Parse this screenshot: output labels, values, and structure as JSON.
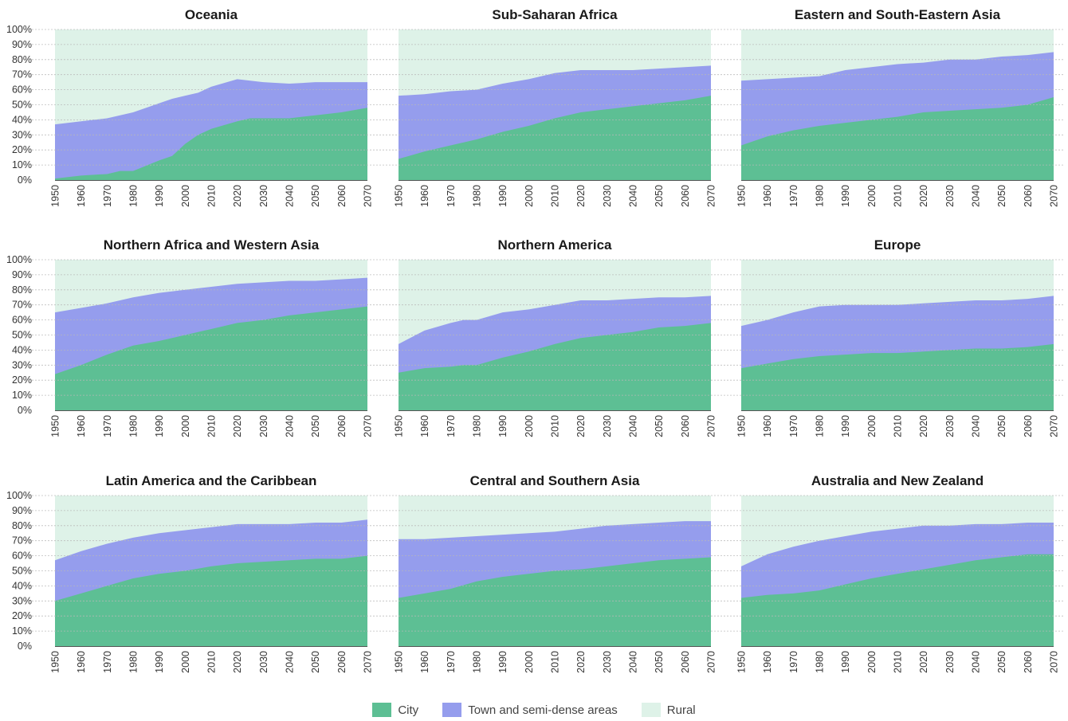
{
  "colors": {
    "city": "#5dbf94",
    "town": "#959ded",
    "rural": "#def2e8",
    "grid": "#b8b8b8"
  },
  "legend": [
    {
      "key": "city",
      "label": "City"
    },
    {
      "key": "town",
      "label": "Town and semi-dense areas"
    },
    {
      "key": "rural",
      "label": "Rural"
    }
  ],
  "chart_data": [
    {
      "type": "area",
      "title": "Oceania",
      "x": [
        1950,
        1960,
        1970,
        1975,
        1980,
        1990,
        1995,
        2000,
        2005,
        2010,
        2020,
        2025,
        2030,
        2040,
        2050,
        2060,
        2070
      ],
      "series": [
        {
          "name": "City",
          "values": [
            1,
            3,
            4,
            6,
            6,
            13,
            16,
            24,
            30,
            34,
            39,
            41,
            41,
            41,
            43,
            45,
            48
          ]
        },
        {
          "name": "Town and semi-dense areas",
          "values": [
            37,
            39,
            41,
            43,
            45,
            51,
            54,
            56,
            58,
            62,
            67,
            66,
            65,
            64,
            65,
            65,
            65
          ]
        },
        {
          "name": "Rural",
          "values": [
            100,
            100,
            100,
            100,
            100,
            100,
            100,
            100,
            100,
            100,
            100,
            100,
            100,
            100,
            100,
            100,
            100
          ]
        }
      ],
      "ylim": [
        0,
        100
      ]
    },
    {
      "type": "area",
      "title": "Sub-Saharan Africa",
      "x": [
        1950,
        1960,
        1970,
        1980,
        1990,
        2000,
        2010,
        2020,
        2030,
        2040,
        2050,
        2060,
        2070
      ],
      "series": [
        {
          "name": "City",
          "values": [
            14,
            19,
            23,
            27,
            32,
            36,
            41,
            45,
            47,
            49,
            51,
            53,
            56
          ]
        },
        {
          "name": "Town and semi-dense areas",
          "values": [
            56,
            57,
            59,
            60,
            64,
            67,
            71,
            73,
            73,
            73,
            74,
            75,
            76
          ]
        },
        {
          "name": "Rural",
          "values": [
            100,
            100,
            100,
            100,
            100,
            100,
            100,
            100,
            100,
            100,
            100,
            100,
            100
          ]
        }
      ],
      "ylim": [
        0,
        100
      ]
    },
    {
      "type": "area",
      "title": "Eastern and South-Eastern Asia",
      "x": [
        1950,
        1960,
        1970,
        1980,
        1990,
        2000,
        2010,
        2020,
        2030,
        2040,
        2050,
        2060,
        2070
      ],
      "series": [
        {
          "name": "City",
          "values": [
            23,
            29,
            33,
            36,
            38,
            40,
            42,
            45,
            46,
            47,
            48,
            50,
            55
          ]
        },
        {
          "name": "Town and semi-dense areas",
          "values": [
            66,
            67,
            68,
            69,
            73,
            75,
            77,
            78,
            80,
            80,
            82,
            83,
            85
          ]
        },
        {
          "name": "Rural",
          "values": [
            100,
            100,
            100,
            100,
            100,
            100,
            100,
            100,
            100,
            100,
            100,
            100,
            100
          ]
        }
      ],
      "ylim": [
        0,
        100
      ]
    },
    {
      "type": "area",
      "title": "Northern Africa and Western Asia",
      "x": [
        1950,
        1960,
        1970,
        1980,
        1990,
        2000,
        2010,
        2020,
        2030,
        2040,
        2050,
        2060,
        2070
      ],
      "series": [
        {
          "name": "City",
          "values": [
            24,
            30,
            37,
            43,
            46,
            50,
            54,
            58,
            60,
            63,
            65,
            67,
            69
          ]
        },
        {
          "name": "Town and semi-dense areas",
          "values": [
            65,
            68,
            71,
            75,
            78,
            80,
            82,
            84,
            85,
            86,
            86,
            87,
            88
          ]
        },
        {
          "name": "Rural",
          "values": [
            100,
            100,
            100,
            100,
            100,
            100,
            100,
            100,
            100,
            100,
            100,
            100,
            100
          ]
        }
      ],
      "ylim": [
        0,
        100
      ]
    },
    {
      "type": "area",
      "title": "Northern America",
      "x": [
        1950,
        1960,
        1970,
        1975,
        1980,
        1990,
        2000,
        2010,
        2020,
        2030,
        2040,
        2050,
        2060,
        2070
      ],
      "series": [
        {
          "name": "City",
          "values": [
            25,
            28,
            29,
            30,
            30,
            35,
            39,
            44,
            48,
            50,
            52,
            55,
            56,
            58
          ]
        },
        {
          "name": "Town and semi-dense areas",
          "values": [
            44,
            53,
            58,
            60,
            60,
            65,
            67,
            70,
            73,
            73,
            74,
            75,
            75,
            76
          ]
        },
        {
          "name": "Rural",
          "values": [
            100,
            100,
            100,
            100,
            100,
            100,
            100,
            100,
            100,
            100,
            100,
            100,
            100,
            100
          ]
        }
      ],
      "ylim": [
        0,
        100
      ]
    },
    {
      "type": "area",
      "title": "Europe",
      "x": [
        1950,
        1960,
        1970,
        1980,
        1990,
        2000,
        2010,
        2020,
        2030,
        2040,
        2050,
        2060,
        2070
      ],
      "series": [
        {
          "name": "City",
          "values": [
            28,
            31,
            34,
            36,
            37,
            38,
            38,
            39,
            40,
            41,
            41,
            42,
            44
          ]
        },
        {
          "name": "Town and semi-dense areas",
          "values": [
            56,
            60,
            65,
            69,
            70,
            70,
            70,
            71,
            72,
            73,
            73,
            74,
            76
          ]
        },
        {
          "name": "Rural",
          "values": [
            100,
            100,
            100,
            100,
            100,
            100,
            100,
            100,
            100,
            100,
            100,
            100,
            100
          ]
        }
      ],
      "ylim": [
        0,
        100
      ]
    },
    {
      "type": "area",
      "title": "Latin America and the Caribbean",
      "x": [
        1950,
        1960,
        1970,
        1980,
        1990,
        2000,
        2010,
        2020,
        2030,
        2040,
        2050,
        2060,
        2070
      ],
      "series": [
        {
          "name": "City",
          "values": [
            30,
            35,
            40,
            45,
            48,
            50,
            53,
            55,
            56,
            57,
            58,
            58,
            60
          ]
        },
        {
          "name": "Town and semi-dense areas",
          "values": [
            57,
            63,
            68,
            72,
            75,
            77,
            79,
            81,
            81,
            81,
            82,
            82,
            84
          ]
        },
        {
          "name": "Rural",
          "values": [
            100,
            100,
            100,
            100,
            100,
            100,
            100,
            100,
            100,
            100,
            100,
            100,
            100
          ]
        }
      ],
      "ylim": [
        0,
        100
      ]
    },
    {
      "type": "area",
      "title": "Central and Southern Asia",
      "x": [
        1950,
        1960,
        1970,
        1980,
        1990,
        2000,
        2010,
        2020,
        2030,
        2040,
        2050,
        2060,
        2070
      ],
      "series": [
        {
          "name": "City",
          "values": [
            32,
            35,
            38,
            43,
            46,
            48,
            50,
            51,
            53,
            55,
            57,
            58,
            59
          ]
        },
        {
          "name": "Town and semi-dense areas",
          "values": [
            71,
            71,
            72,
            73,
            74,
            75,
            76,
            78,
            80,
            81,
            82,
            83,
            83
          ]
        },
        {
          "name": "Rural",
          "values": [
            100,
            100,
            100,
            100,
            100,
            100,
            100,
            100,
            100,
            100,
            100,
            100,
            100
          ]
        }
      ],
      "ylim": [
        0,
        100
      ]
    },
    {
      "type": "area",
      "title": "Australia and New Zealand",
      "x": [
        1950,
        1960,
        1970,
        1980,
        1990,
        2000,
        2010,
        2020,
        2030,
        2040,
        2050,
        2060,
        2070
      ],
      "series": [
        {
          "name": "City",
          "values": [
            32,
            34,
            35,
            37,
            41,
            45,
            48,
            51,
            54,
            57,
            59,
            61,
            61
          ]
        },
        {
          "name": "Town and semi-dense areas",
          "values": [
            53,
            61,
            66,
            70,
            73,
            76,
            78,
            80,
            80,
            81,
            81,
            82,
            82
          ]
        },
        {
          "name": "Rural",
          "values": [
            100,
            100,
            100,
            100,
            100,
            100,
            100,
            100,
            100,
            100,
            100,
            100,
            100
          ]
        }
      ],
      "ylim": [
        0,
        100
      ]
    }
  ],
  "axis": {
    "y_ticks": [
      "0%",
      "10%",
      "20%",
      "30%",
      "40%",
      "50%",
      "60%",
      "70%",
      "80%",
      "90%",
      "100%"
    ],
    "x_ticks": [
      "1950",
      "1960",
      "1970",
      "1980",
      "1990",
      "2000",
      "2010",
      "2020",
      "2030",
      "2040",
      "2050",
      "2060",
      "2070"
    ]
  }
}
